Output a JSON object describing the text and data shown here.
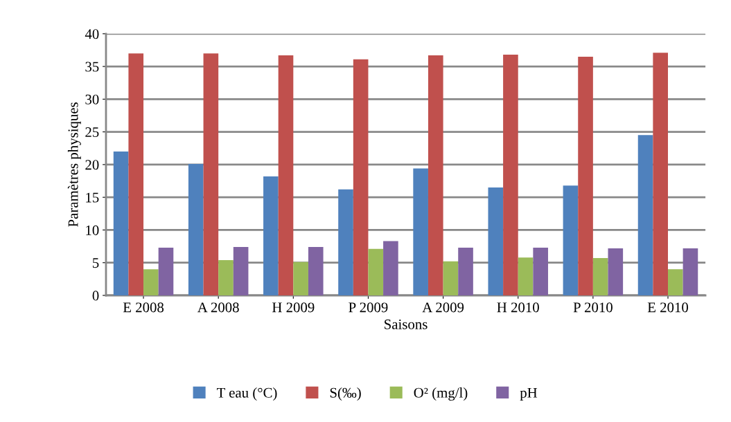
{
  "chart_data": {
    "type": "bar",
    "xlabel": "Saisons",
    "ylabel": "Paramètres physiques",
    "categories": [
      "E 2008",
      "A 2008",
      "H 2009",
      "P 2009",
      "A 2009",
      "H 2010",
      "P 2010",
      "E 2010"
    ],
    "series": [
      {
        "name": "T eau (°C)",
        "color": "#4f81bd",
        "values": [
          22.0,
          20.1,
          18.2,
          16.2,
          19.4,
          16.5,
          16.8,
          24.5
        ]
      },
      {
        "name": "S(‰)",
        "color": "#c0504d",
        "values": [
          37.0,
          37.0,
          36.7,
          36.1,
          36.7,
          36.8,
          36.5,
          37.1
        ]
      },
      {
        "name": "O² (mg/l)",
        "color": "#9bbb59",
        "values": [
          4.0,
          5.4,
          5.1,
          7.1,
          5.2,
          5.8,
          5.7,
          4.0
        ]
      },
      {
        "name": "pH",
        "color": "#8064a2",
        "values": [
          7.3,
          7.4,
          7.4,
          8.3,
          7.3,
          7.3,
          7.2,
          7.2
        ]
      }
    ],
    "ylim": [
      0,
      40
    ],
    "yticks": [
      0,
      5,
      10,
      15,
      20,
      25,
      30,
      35,
      40
    ],
    "grid": "y",
    "legend": "bottom"
  }
}
